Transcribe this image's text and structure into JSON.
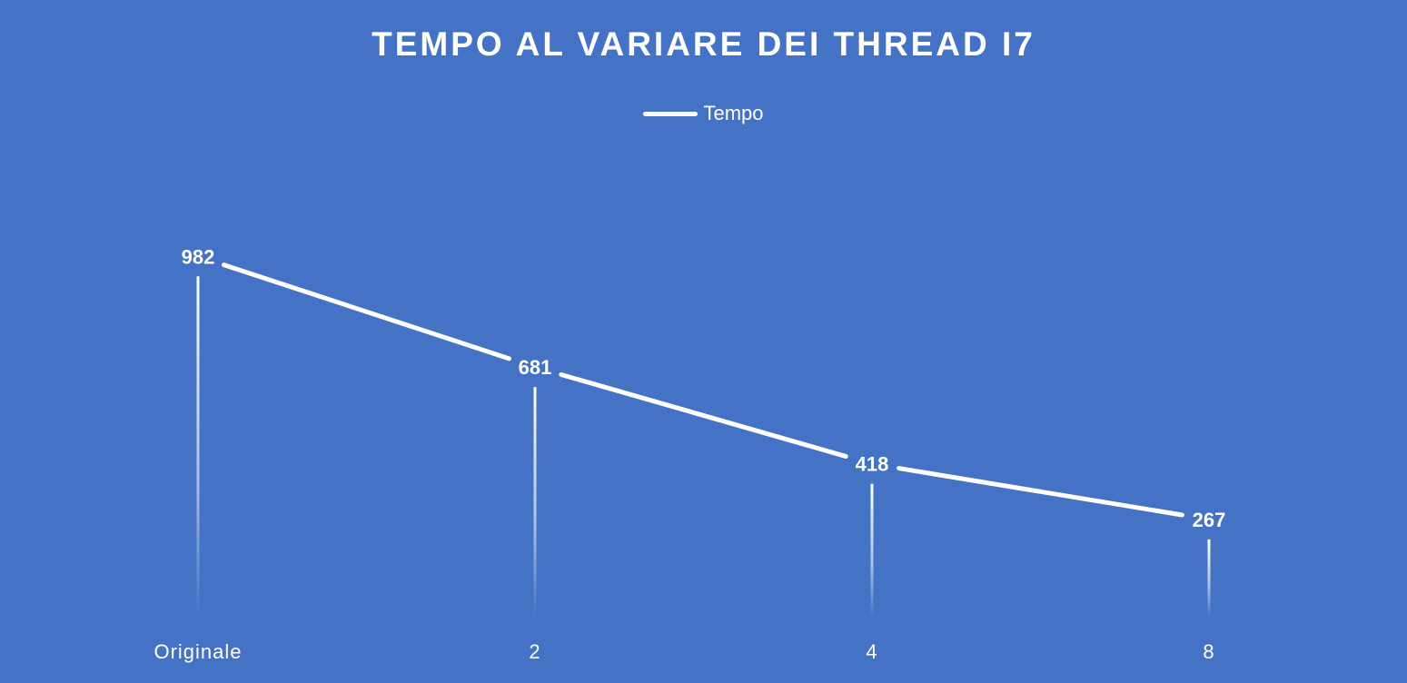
{
  "chart_data": {
    "type": "line",
    "title": "TEMPO AL VARIARE DEI THREAD I7",
    "categories": [
      "Originale",
      "2",
      "4",
      "8"
    ],
    "series": [
      {
        "name": "Tempo",
        "values": [
          982,
          681,
          418,
          267
        ]
      }
    ],
    "xlabel": "",
    "ylabel": "",
    "grid": false,
    "legend_position": "top",
    "drop_lines": true,
    "data_labels": true,
    "colors": {
      "background": "#4472c4",
      "line": "#ffffff"
    }
  }
}
